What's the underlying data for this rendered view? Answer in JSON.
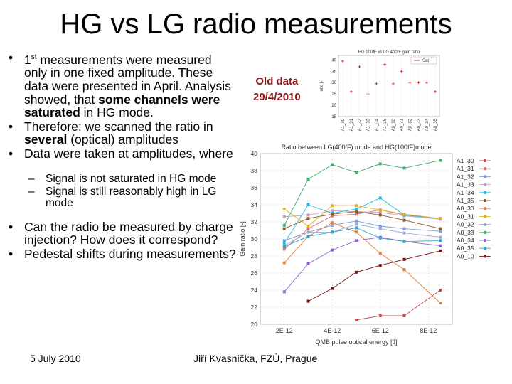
{
  "title": "HG vs LG radio measurements",
  "bullets": [
    {
      "pre": "1",
      "sup": "st",
      "text": " measurements were measured only in one fixed amplitude. These data were presented in April. Analysis showed, that ",
      "bold": "some channels were saturated",
      "post": " in HG mode."
    },
    {
      "pre": "Therefore: we scanned the ratio in ",
      "bold": "several",
      "post": " (optical) amplitudes"
    },
    {
      "text": "Data were taken at amplitudes, where"
    }
  ],
  "subbullets": [
    "Signal is not saturated in HG mode",
    "Signal is still reasonably high in LG mode"
  ],
  "bullets2": [
    "Can the radio be measured by charge injection? How does it correspond?",
    "Pedestal shifts during measurements?"
  ],
  "old_data_label": "Old data\n29/4/2010",
  "footer": {
    "date": "5 July 2010",
    "author": "Jiří Kvasnička, FZÚ, Prague"
  },
  "colors": {
    "old_points": "#c01818",
    "accent": "#8b1a1a"
  },
  "chart_data": [
    {
      "type": "scatter",
      "title": "HG 100fF vs LG 400fF gain ratio",
      "ylabel": "ratio [-]",
      "legend": "Sat",
      "categories": [
        "A1_30",
        "A1_31",
        "A1_32",
        "A1_33",
        "A1_34",
        "A1_35",
        "A0_30",
        "A0_31",
        "A0_32",
        "A0_33",
        "A0_34",
        "A0_35"
      ],
      "yticks": [
        15,
        20,
        25,
        30,
        35,
        40
      ],
      "ylim": [
        15,
        42
      ],
      "values": [
        39.5,
        26,
        37,
        25,
        29.5,
        38,
        29.5,
        35,
        30,
        30,
        30,
        26
      ]
    },
    {
      "type": "line",
      "title": "Ratio between LG(400fF) mode and HG(100fF)mode",
      "xlabel": "QMB pulse optical energy [J]",
      "ylabel": "Gain ratio [-]",
      "xticks": [
        "2E-12",
        "4E-12",
        "6E-12",
        "8E-12"
      ],
      "xlim": [
        1e-12,
        9e-12
      ],
      "ylim": [
        20,
        40
      ],
      "yticks": [
        20,
        22,
        24,
        26,
        28,
        30,
        32,
        34,
        36,
        38,
        40
      ],
      "x": [
        2e-12,
        3e-12,
        4e-12,
        5e-12,
        6e-12,
        7e-12,
        8.5e-12
      ],
      "series": [
        {
          "name": "A1_30",
          "color": "#c05050",
          "values": [
            null,
            null,
            null,
            20.5,
            21,
            21,
            24
          ]
        },
        {
          "name": "A1_31",
          "color": "#d87070",
          "values": [
            28.8,
            31.2,
            32.7,
            32.9,
            33.4,
            32.8,
            32.4
          ]
        },
        {
          "name": "A1_32",
          "color": "#7e9ad6",
          "values": [
            29.8,
            30.8,
            31.6,
            32.1,
            31.5,
            31.2,
            30.9
          ]
        },
        {
          "name": "A1_33",
          "color": "#c0a0c0",
          "values": [
            32.6,
            32.8,
            33.3,
            33.2,
            33.1,
            32.7,
            32.3
          ]
        },
        {
          "name": "A1_34",
          "color": "#1fbbe8",
          "values": [
            29.5,
            34,
            33,
            33.5,
            34.8,
            32.8,
            32.4
          ]
        },
        {
          "name": "A1_35",
          "color": "#8b5a2b",
          "values": [
            31.2,
            32.4,
            32.9,
            33.2,
            32.8,
            32.2,
            31.2
          ]
        },
        {
          "name": "A0_30",
          "color": "#e08040",
          "values": [
            27.2,
            30.3,
            31.9,
            30.8,
            28.3,
            26.4,
            22.5
          ]
        },
        {
          "name": "A0_31",
          "color": "#e0b020",
          "values": [
            33.5,
            31.5,
            33.9,
            33.9,
            33.4,
            32.9,
            32.4
          ]
        },
        {
          "name": "A0_32",
          "color": "#a0a8d0",
          "values": [
            29.2,
            30.8,
            30.8,
            31.7,
            31.2,
            30.7,
            30.2
          ]
        },
        {
          "name": "A0_33",
          "color": "#40b070",
          "values": [
            31.6,
            37,
            38.7,
            37.8,
            38.8,
            38.3,
            39.2
          ]
        },
        {
          "name": "A0_34",
          "color": "#9060d0",
          "values": [
            23.8,
            27.1,
            28.7,
            29.8,
            30.2,
            29.7,
            29.2
          ]
        },
        {
          "name": "A0_35",
          "color": "#2aa8c8",
          "values": [
            29.1,
            30.3,
            30.8,
            31.3,
            30.1,
            29.7,
            29.8
          ]
        },
        {
          "name": "A0_10",
          "color": "#7a1010",
          "values": [
            null,
            22.7,
            24.2,
            26.1,
            26.9,
            27.6,
            28.6
          ]
        }
      ]
    }
  ]
}
